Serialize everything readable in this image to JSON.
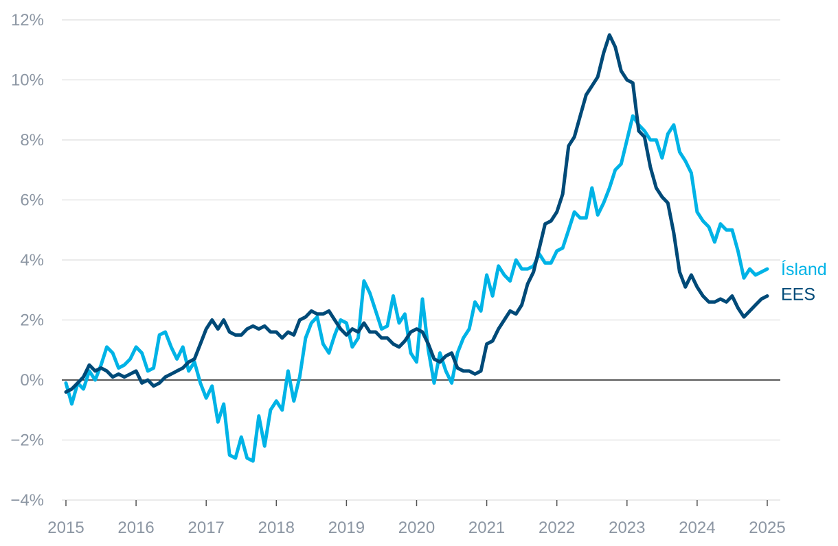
{
  "chart_data": {
    "type": "line",
    "title": "",
    "xlabel": "",
    "ylabel": "",
    "xlim": [
      2015,
      2025
    ],
    "ylim": [
      -4,
      12
    ],
    "x_ticks": [
      "2015",
      "2016",
      "2017",
      "2018",
      "2019",
      "2020",
      "2021",
      "2022",
      "2023",
      "2024",
      "2025"
    ],
    "y_ticks": [
      "−4%",
      "−2%",
      "0%",
      "2%",
      "4%",
      "6%",
      "8%",
      "10%",
      "12%"
    ],
    "grid": "horizontal",
    "legend": "inline-right",
    "colors": {
      "Ísland": "#00b3e6",
      "EES": "#004a78",
      "zero_line": "#222222",
      "grid": "#dddddd",
      "axis_text": "#8c96a3"
    },
    "series": [
      {
        "name": "Ísland",
        "x": [
          2015.0,
          2015.083,
          2015.167,
          2015.25,
          2015.333,
          2015.417,
          2015.5,
          2015.583,
          2015.667,
          2015.75,
          2015.833,
          2015.917,
          2016.0,
          2016.083,
          2016.167,
          2016.25,
          2016.333,
          2016.417,
          2016.5,
          2016.583,
          2016.667,
          2016.75,
          2016.833,
          2016.917,
          2017.0,
          2017.083,
          2017.167,
          2017.25,
          2017.333,
          2017.417,
          2017.5,
          2017.583,
          2017.667,
          2017.75,
          2017.833,
          2017.917,
          2018.0,
          2018.083,
          2018.167,
          2018.25,
          2018.333,
          2018.417,
          2018.5,
          2018.583,
          2018.667,
          2018.75,
          2018.833,
          2018.917,
          2019.0,
          2019.083,
          2019.167,
          2019.25,
          2019.333,
          2019.417,
          2019.5,
          2019.583,
          2019.667,
          2019.75,
          2019.833,
          2019.917,
          2020.0,
          2020.083,
          2020.167,
          2020.25,
          2020.333,
          2020.417,
          2020.5,
          2020.583,
          2020.667,
          2020.75,
          2020.833,
          2020.917,
          2021.0,
          2021.083,
          2021.167,
          2021.25,
          2021.333,
          2021.417,
          2021.5,
          2021.583,
          2021.667,
          2021.75,
          2021.833,
          2021.917,
          2022.0,
          2022.083,
          2022.167,
          2022.25,
          2022.333,
          2022.417,
          2022.5,
          2022.583,
          2022.667,
          2022.75,
          2022.833,
          2022.917,
          2023.0,
          2023.083,
          2023.167,
          2023.25,
          2023.333,
          2023.417,
          2023.5,
          2023.583,
          2023.667,
          2023.75,
          2023.833,
          2023.917,
          2024.0,
          2024.083,
          2024.167,
          2024.25,
          2024.333,
          2024.417,
          2024.5,
          2024.583,
          2024.667,
          2024.75,
          2024.833,
          2024.917,
          2025.0
        ],
        "values": [
          -0.1,
          -0.8,
          -0.1,
          -0.3,
          0.3,
          0.0,
          0.5,
          1.1,
          0.9,
          0.4,
          0.5,
          0.7,
          1.1,
          0.9,
          0.3,
          0.4,
          1.5,
          1.6,
          1.1,
          0.7,
          1.1,
          0.3,
          0.6,
          -0.1,
          -0.6,
          -0.2,
          -1.4,
          -0.8,
          -2.5,
          -2.6,
          -1.9,
          -2.6,
          -2.7,
          -1.2,
          -2.2,
          -1.0,
          -0.7,
          -1.0,
          0.3,
          -0.7,
          0.1,
          1.4,
          1.9,
          2.1,
          1.2,
          0.9,
          1.5,
          2.0,
          1.9,
          1.1,
          1.4,
          3.3,
          2.9,
          2.3,
          1.7,
          1.8,
          2.8,
          1.9,
          2.2,
          0.9,
          0.6,
          2.7,
          1.0,
          -0.1,
          0.9,
          0.3,
          -0.1,
          0.9,
          1.4,
          1.7,
          2.6,
          2.3,
          3.5,
          2.8,
          3.8,
          3.5,
          3.3,
          4.0,
          3.7,
          3.7,
          3.8,
          4.2,
          3.9,
          3.9,
          4.3,
          4.4,
          5.0,
          5.6,
          5.4,
          5.4,
          6.4,
          5.5,
          5.9,
          6.4,
          7.0,
          7.2,
          8.0,
          8.8,
          8.5,
          8.3,
          8.0,
          8.0,
          7.4,
          8.2,
          8.5,
          7.6,
          7.3,
          6.9,
          5.6,
          5.3,
          5.1,
          4.6,
          5.2,
          5.0,
          5.0,
          4.3,
          3.4,
          3.7,
          3.5,
          3.6,
          3.7
        ]
      },
      {
        "name": "EES",
        "x": [
          2015.0,
          2015.083,
          2015.167,
          2015.25,
          2015.333,
          2015.417,
          2015.5,
          2015.583,
          2015.667,
          2015.75,
          2015.833,
          2015.917,
          2016.0,
          2016.083,
          2016.167,
          2016.25,
          2016.333,
          2016.417,
          2016.5,
          2016.583,
          2016.667,
          2016.75,
          2016.833,
          2016.917,
          2017.0,
          2017.083,
          2017.167,
          2017.25,
          2017.333,
          2017.417,
          2017.5,
          2017.583,
          2017.667,
          2017.75,
          2017.833,
          2017.917,
          2018.0,
          2018.083,
          2018.167,
          2018.25,
          2018.333,
          2018.417,
          2018.5,
          2018.583,
          2018.667,
          2018.75,
          2018.833,
          2018.917,
          2019.0,
          2019.083,
          2019.167,
          2019.25,
          2019.333,
          2019.417,
          2019.5,
          2019.583,
          2019.667,
          2019.75,
          2019.833,
          2019.917,
          2020.0,
          2020.083,
          2020.167,
          2020.25,
          2020.333,
          2020.417,
          2020.5,
          2020.583,
          2020.667,
          2020.75,
          2020.833,
          2020.917,
          2021.0,
          2021.083,
          2021.167,
          2021.25,
          2021.333,
          2021.417,
          2021.5,
          2021.583,
          2021.667,
          2021.75,
          2021.833,
          2021.917,
          2022.0,
          2022.083,
          2022.167,
          2022.25,
          2022.333,
          2022.417,
          2022.5,
          2022.583,
          2022.667,
          2022.75,
          2022.833,
          2022.917,
          2023.0,
          2023.083,
          2023.167,
          2023.25,
          2023.333,
          2023.417,
          2023.5,
          2023.583,
          2023.667,
          2023.75,
          2023.833,
          2023.917,
          2024.0,
          2024.083,
          2024.167,
          2024.25,
          2024.333,
          2024.417,
          2024.5,
          2024.583,
          2024.667,
          2024.75,
          2024.833,
          2024.917,
          2025.0
        ],
        "values": [
          -0.4,
          -0.3,
          -0.1,
          0.1,
          0.5,
          0.3,
          0.4,
          0.3,
          0.1,
          0.2,
          0.1,
          0.2,
          0.3,
          -0.1,
          0.0,
          -0.2,
          -0.1,
          0.1,
          0.2,
          0.3,
          0.4,
          0.6,
          0.7,
          1.2,
          1.7,
          2.0,
          1.7,
          2.0,
          1.6,
          1.5,
          1.5,
          1.7,
          1.8,
          1.7,
          1.8,
          1.6,
          1.6,
          1.4,
          1.6,
          1.5,
          2.0,
          2.1,
          2.3,
          2.2,
          2.2,
          2.3,
          2.0,
          1.7,
          1.5,
          1.7,
          1.6,
          1.9,
          1.6,
          1.6,
          1.4,
          1.4,
          1.2,
          1.1,
          1.3,
          1.6,
          1.7,
          1.6,
          1.2,
          0.7,
          0.6,
          0.8,
          0.9,
          0.4,
          0.3,
          0.3,
          0.2,
          0.3,
          1.2,
          1.3,
          1.7,
          2.0,
          2.3,
          2.2,
          2.5,
          3.2,
          3.6,
          4.4,
          5.2,
          5.3,
          5.6,
          6.2,
          7.8,
          8.1,
          8.8,
          9.5,
          9.8,
          10.1,
          10.9,
          11.5,
          11.1,
          10.3,
          10.0,
          9.9,
          8.3,
          8.1,
          7.1,
          6.4,
          6.1,
          5.9,
          4.9,
          3.6,
          3.1,
          3.5,
          3.1,
          2.8,
          2.6,
          2.6,
          2.7,
          2.6,
          2.8,
          2.4,
          2.1,
          2.3,
          2.5,
          2.7,
          2.8
        ]
      }
    ]
  }
}
